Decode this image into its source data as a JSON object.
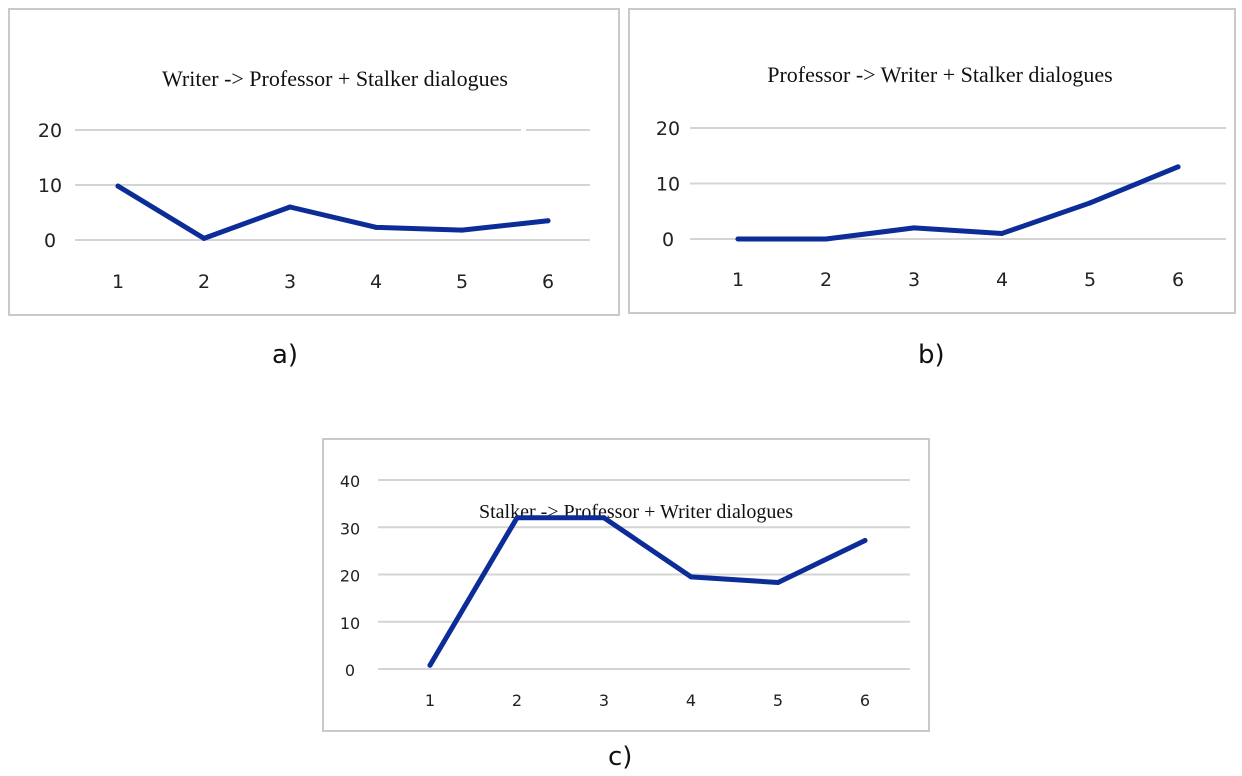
{
  "colors": {
    "series": "#0c2c98",
    "grid": "#d4d4d4",
    "border": "#c9c9c9"
  },
  "chart_data": [
    {
      "id": "a",
      "type": "line",
      "title": "Writer -> Professor + Stalker  dialogues",
      "x": [
        1,
        2,
        3,
        4,
        5,
        6
      ],
      "y_ticks": [
        0,
        10,
        20
      ],
      "ylim": [
        0,
        20
      ],
      "grid": true,
      "series": [
        {
          "values": [
            9.8,
            0.3,
            6,
            2.3,
            1.8,
            3.5
          ]
        }
      ]
    },
    {
      "id": "b",
      "type": "line",
      "title": "Professor -> Writer + Stalker  dialogues",
      "x": [
        1,
        2,
        3,
        4,
        5,
        6
      ],
      "y_ticks": [
        0,
        10,
        20
      ],
      "ylim": [
        0,
        20
      ],
      "grid": true,
      "series": [
        {
          "values": [
            0,
            0,
            2,
            1,
            6.5,
            13
          ]
        }
      ]
    },
    {
      "id": "c",
      "type": "line",
      "title": "Stalker -> Professor + Writer dialogues",
      "x": [
        1,
        2,
        3,
        4,
        5,
        6
      ],
      "y_ticks": [
        0,
        10,
        20,
        30,
        40
      ],
      "ylim": [
        0,
        40
      ],
      "grid": true,
      "series": [
        {
          "values": [
            0.8,
            32,
            32,
            19.5,
            18.3,
            27.2
          ]
        }
      ]
    }
  ],
  "captions": {
    "a": "a)",
    "b": "b)",
    "c": "c)"
  }
}
